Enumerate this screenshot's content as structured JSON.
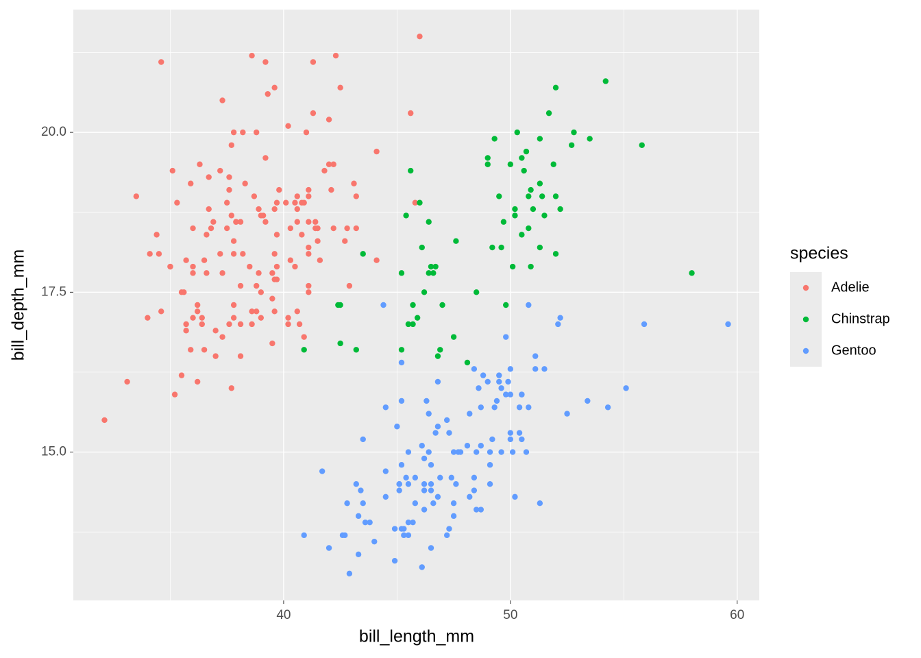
{
  "chart_data": {
    "type": "scatter",
    "xlabel": "bill_length_mm",
    "ylabel": "bill_depth_mm",
    "legend_title": "species",
    "legend": "right",
    "grid": true,
    "xlim": [
      30.725,
      60.975
    ],
    "ylim": [
      12.68,
      21.92
    ],
    "xticks": [
      40,
      50,
      60
    ],
    "yticks": [
      {
        "value": 15,
        "label": "15.0"
      },
      17.5,
      {
        "value": 20,
        "label": "20.0"
      }
    ],
    "series": [
      {
        "name": "Adelie",
        "color": "#f8766d",
        "x": [
          39.1,
          39.5,
          40.3,
          36.7,
          39.3,
          38.9,
          39.2,
          34.1,
          42,
          37.8,
          37.8,
          41.1,
          38.6,
          34.6,
          36.6,
          38.7,
          42.5,
          34.4,
          46,
          37.8,
          37.7,
          35.9,
          38.2,
          38.8,
          35.3,
          40.6,
          40.5,
          37.9,
          40.5,
          39.5,
          37.2,
          39.5,
          40.9,
          36.4,
          39.2,
          38.8,
          42.2,
          37.6,
          39.8,
          36.5,
          40.8,
          36,
          44.1,
          37,
          39.6,
          41.1,
          37.5,
          36,
          42.3,
          39.6,
          40.1,
          35,
          42,
          34.5,
          41.4,
          39,
          40.6,
          36.5,
          37.6,
          35.7,
          41.3,
          37.6,
          41.1,
          36.4,
          41.6,
          35.5,
          41.1,
          35.9,
          41.8,
          33.5,
          39.7,
          39.6,
          45.8,
          35.5,
          42.8,
          40.9,
          37.2,
          36.2,
          42.1,
          34.6,
          42.9,
          36.7,
          35.1,
          37.3,
          41.3,
          36.3,
          36.9,
          38.3,
          38.9,
          35.7,
          41.1,
          34,
          39.6,
          36.2,
          40.8,
          38.1,
          40.3,
          33.1,
          43.2,
          35,
          41,
          37.7,
          37.8,
          37.9,
          39.7,
          38.6,
          38.2,
          38.1,
          43.2,
          38.1,
          45.6,
          39.7,
          42.2,
          39.6,
          42.7,
          38.6,
          37.3,
          35.7,
          41.1,
          36.2,
          37.7,
          40.2,
          41.4,
          35.2,
          40.6,
          38.8,
          41.5,
          39,
          44.1,
          38.5,
          43.1,
          36.8,
          37.5,
          38.1,
          41.1,
          35.6,
          40.2,
          37,
          39.7,
          40.2,
          40.6,
          32.1,
          40.7,
          37.3,
          39,
          39.2,
          36.6,
          36,
          37.8,
          36,
          41.5
        ],
        "values": [
          18.7,
          17.4,
          18,
          19.3,
          20.6,
          17.8,
          19.6,
          18.1,
          20.2,
          17.1,
          17.3,
          17.6,
          21.2,
          21.1,
          17.8,
          19,
          20.7,
          18.4,
          21.5,
          18.3,
          18.7,
          19.2,
          18.1,
          17.2,
          18.9,
          18.6,
          17.9,
          18.6,
          18.9,
          16.7,
          18.1,
          17.8,
          18.9,
          17,
          21.1,
          20,
          18.5,
          19.3,
          19.1,
          18,
          18.4,
          18.5,
          19.7,
          16.9,
          18.8,
          19,
          18.9,
          17.9,
          21.2,
          17.7,
          18.9,
          17.9,
          19.5,
          18.1,
          18.6,
          17.5,
          18.8,
          16.6,
          19.1,
          16.9,
          21.1,
          17,
          18.2,
          17.1,
          18,
          16.2,
          19.1,
          16.6,
          19.4,
          19,
          18.4,
          17.2,
          18.9,
          17.5,
          18.5,
          16.8,
          19.4,
          16.1,
          19.1,
          17.2,
          17.6,
          18.8,
          19.4,
          17.8,
          20.3,
          19.5,
          18.6,
          19.2,
          18.8,
          18,
          18.1,
          17.1,
          18.1,
          17.3,
          18.9,
          18.6,
          18.5,
          16.1,
          18.5,
          17.9,
          20,
          16,
          20,
          18.6,
          18.9,
          17.2,
          20,
          17,
          19,
          16.5,
          20.3,
          17.7,
          19.5,
          20.7,
          18.3,
          17,
          20.5,
          17,
          18.6,
          17.2,
          19.8,
          17,
          18.5,
          15.9,
          19,
          17.6,
          18.3,
          17.1,
          18,
          17.9,
          19.2,
          18.5,
          18.5,
          17.6,
          17.5,
          17.5,
          20.1,
          16.5,
          17.9,
          17.1,
          17.2,
          15.5,
          17,
          16.8,
          18.7,
          18.6,
          18.4,
          17.8,
          18.1,
          17.1,
          18.5
        ]
      },
      {
        "name": "Chinstrap",
        "color": "#00ba38",
        "x": [
          46.5,
          50,
          51.3,
          45.4,
          52.7,
          45.2,
          46.1,
          51.3,
          46,
          51.3,
          46.6,
          51.7,
          47,
          52,
          45.9,
          50.5,
          50.3,
          58,
          46.4,
          49.2,
          42.4,
          48.5,
          43.2,
          50.6,
          46.7,
          52,
          50.5,
          49.5,
          46.4,
          52.8,
          40.9,
          54.2,
          42.5,
          51,
          49.7,
          47.5,
          47.6,
          52,
          46.9,
          53.5,
          49,
          46.2,
          50.9,
          45.5,
          50.9,
          50.8,
          50.1,
          49,
          51.5,
          49.8,
          48.1,
          51.4,
          45.7,
          50.7,
          42.5,
          52.2,
          45.2,
          49.3,
          50.2,
          45.6,
          51.9,
          46.8,
          45.7,
          55.8,
          43.5,
          49.6,
          50.8,
          50.2
        ],
        "values": [
          17.9,
          19.5,
          19.2,
          18.7,
          19.8,
          17.8,
          18.2,
          18.2,
          18.9,
          19.9,
          17.8,
          20.3,
          17.3,
          18.1,
          17.1,
          19.6,
          20,
          17.8,
          18.6,
          18.2,
          17.3,
          17.5,
          16.6,
          19.4,
          17.9,
          19,
          18.4,
          19,
          17.8,
          20,
          16.6,
          20.8,
          16.7,
          18.8,
          18.6,
          16.8,
          18.3,
          20.7,
          16.6,
          19.9,
          19.5,
          17.5,
          19.1,
          17,
          17.9,
          18.5,
          17.9,
          19.6,
          18.7,
          17.3,
          16.4,
          19,
          17.3,
          19.7,
          17.3,
          18.8,
          16.6,
          19.9,
          18.8,
          19.4,
          19.5,
          16.5,
          17,
          19.8,
          18.1,
          18.2,
          19,
          18.7
        ]
      },
      {
        "name": "Gentoo",
        "color": "#619cff",
        "x": [
          46.1,
          50,
          48.7,
          50,
          47.6,
          46.5,
          45.4,
          46.7,
          43.3,
          46.8,
          40.9,
          49,
          45.5,
          48.4,
          45.8,
          49.3,
          42,
          49.2,
          46.2,
          48.7,
          50.2,
          45.1,
          46.5,
          46.3,
          42.9,
          46.1,
          44.5,
          47.8,
          48.2,
          50,
          47.3,
          42.8,
          45.1,
          59.6,
          49.1,
          48.4,
          42.6,
          44.4,
          44,
          48.7,
          42.7,
          49.6,
          45.3,
          49.6,
          50.5,
          43.6,
          45.5,
          50.5,
          44.9,
          45.2,
          46.6,
          48.5,
          45.1,
          50.1,
          46.5,
          45,
          43.8,
          45.5,
          43.2,
          50.4,
          45.3,
          46.2,
          45.7,
          54.3,
          45.8,
          49.8,
          46.2,
          49.5,
          43.5,
          50.7,
          47.7,
          46.4,
          48.2,
          46.5,
          46.4,
          48.6,
          47.5,
          51.1,
          45.2,
          45.2,
          49.1,
          52.5,
          47.4,
          50,
          44.9,
          50.8,
          43.4,
          51.3,
          47.5,
          52.1,
          47.5,
          52.2,
          45.5,
          49.5,
          44.5,
          50.8,
          49.4,
          46.9,
          48.4,
          51.1,
          48.5,
          55.9,
          47.2,
          49.1,
          47.3,
          46.8,
          41.7,
          53.4,
          43.3,
          48.1,
          50.5,
          49.8,
          43.5,
          51.5,
          46.2,
          55.1,
          44.5,
          48.8,
          47.2,
          46.8,
          50.4,
          45.2,
          49.9
        ],
        "values": [
          13.2,
          16.3,
          14.1,
          15.2,
          14.5,
          13.5,
          14.6,
          15.3,
          13.4,
          15.4,
          13.7,
          16.1,
          13.7,
          14.6,
          14.6,
          15.7,
          13.5,
          15.2,
          14.5,
          15.1,
          14.3,
          14.5,
          14.5,
          15.8,
          13.1,
          15.1,
          14.3,
          15,
          14.3,
          15.3,
          15.3,
          14.2,
          14.5,
          17,
          14.8,
          16.3,
          13.7,
          17.3,
          13.6,
          15.7,
          13.7,
          16,
          13.7,
          15,
          15.9,
          13.9,
          13.9,
          15.9,
          13.3,
          15.8,
          14.2,
          14.1,
          14.4,
          15,
          14.4,
          15.4,
          13.9,
          15,
          14.5,
          15.3,
          13.8,
          14.9,
          13.9,
          15.7,
          14.2,
          16.8,
          14.4,
          16.2,
          14.2,
          15,
          15,
          15.6,
          15.6,
          14.8,
          15,
          16,
          14.2,
          16.3,
          13.8,
          16.4,
          14.5,
          15.6,
          14.6,
          15.9,
          13.8,
          17.3,
          14.4,
          14.2,
          14,
          17,
          15,
          17.1,
          14.5,
          16.1,
          14.7,
          15.7,
          15.8,
          14.6,
          14.4,
          16.5,
          15,
          17,
          15.5,
          15,
          13.8,
          16.1,
          14.7,
          15.8,
          14,
          15.1,
          15.2,
          15.9,
          15.2,
          16.3,
          14.1,
          16,
          15.7,
          16.2,
          13.7,
          14.3,
          15.7,
          14.8,
          16.1
        ]
      }
    ]
  }
}
